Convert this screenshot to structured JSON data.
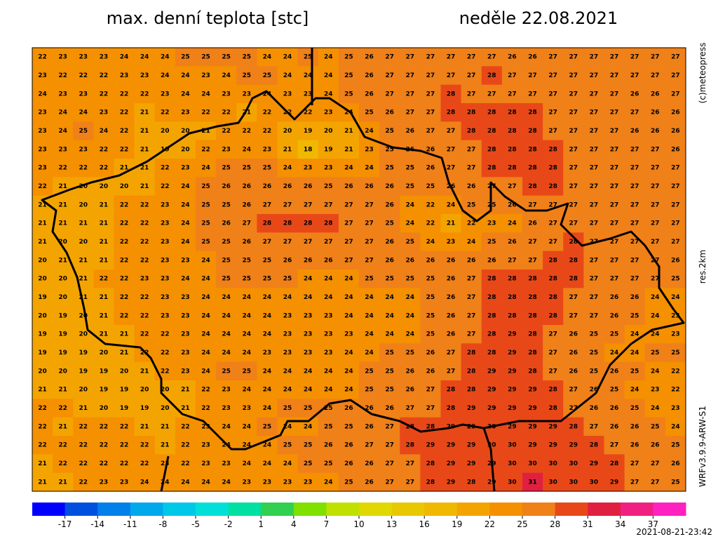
{
  "map": {
    "title": "max. denní teplota [stc]",
    "date": "neděle 22.08.2021",
    "rows": [
      [
        22,
        23,
        23,
        23,
        24,
        24,
        24,
        25,
        25,
        25,
        25,
        24,
        24,
        25,
        24,
        25,
        26,
        27,
        27,
        27,
        27,
        27,
        27,
        26,
        26,
        27,
        27,
        27,
        27,
        27,
        27,
        27
      ],
      [
        23,
        22,
        22,
        22,
        23,
        23,
        24,
        24,
        23,
        24,
        25,
        25,
        24,
        24,
        24,
        25,
        26,
        27,
        27,
        27,
        27,
        27,
        28,
        27,
        27,
        27,
        27,
        27,
        27,
        27,
        27,
        27
      ],
      [
        24,
        23,
        23,
        22,
        22,
        22,
        23,
        24,
        24,
        23,
        23,
        24,
        23,
        23,
        24,
        25,
        26,
        27,
        27,
        27,
        28,
        27,
        27,
        27,
        27,
        27,
        27,
        27,
        27,
        26,
        26,
        27
      ],
      [
        23,
        24,
        24,
        23,
        22,
        21,
        22,
        23,
        22,
        22,
        21,
        22,
        22,
        22,
        23,
        24,
        25,
        26,
        27,
        27,
        28,
        28,
        28,
        28,
        28,
        27,
        27,
        27,
        27,
        27,
        26,
        26
      ],
      [
        23,
        24,
        25,
        24,
        22,
        21,
        20,
        20,
        21,
        22,
        22,
        22,
        20,
        19,
        20,
        21,
        24,
        25,
        26,
        27,
        27,
        28,
        28,
        28,
        28,
        27,
        27,
        27,
        27,
        26,
        26,
        26
      ],
      [
        23,
        23,
        23,
        22,
        22,
        21,
        19,
        20,
        22,
        23,
        24,
        23,
        21,
        18,
        19,
        21,
        23,
        25,
        26,
        26,
        27,
        27,
        28,
        28,
        28,
        28,
        27,
        27,
        27,
        27,
        27,
        26
      ],
      [
        23,
        22,
        22,
        22,
        21,
        21,
        22,
        23,
        24,
        25,
        25,
        25,
        24,
        23,
        23,
        24,
        24,
        25,
        25,
        26,
        27,
        27,
        28,
        28,
        28,
        28,
        27,
        27,
        27,
        27,
        27,
        27
      ],
      [
        22,
        21,
        20,
        20,
        20,
        21,
        22,
        24,
        25,
        26,
        26,
        26,
        26,
        26,
        25,
        26,
        26,
        26,
        25,
        25,
        26,
        26,
        27,
        27,
        28,
        28,
        27,
        27,
        27,
        27,
        27,
        27
      ],
      [
        21,
        21,
        20,
        21,
        22,
        22,
        23,
        24,
        25,
        25,
        26,
        27,
        27,
        27,
        27,
        27,
        27,
        26,
        24,
        22,
        24,
        25,
        25,
        26,
        27,
        27,
        27,
        27,
        27,
        27,
        27,
        27
      ],
      [
        21,
        21,
        21,
        21,
        22,
        22,
        23,
        24,
        25,
        26,
        27,
        28,
        28,
        28,
        28,
        27,
        27,
        25,
        24,
        22,
        21,
        22,
        23,
        24,
        26,
        27,
        27,
        27,
        27,
        27,
        27,
        27
      ],
      [
        21,
        20,
        20,
        21,
        22,
        22,
        23,
        24,
        25,
        25,
        26,
        27,
        27,
        27,
        27,
        27,
        27,
        26,
        25,
        24,
        23,
        24,
        25,
        26,
        27,
        27,
        28,
        27,
        27,
        27,
        27,
        27
      ],
      [
        20,
        21,
        21,
        21,
        22,
        22,
        23,
        23,
        24,
        25,
        25,
        25,
        26,
        26,
        26,
        27,
        27,
        26,
        26,
        26,
        26,
        26,
        26,
        27,
        27,
        28,
        28,
        27,
        27,
        27,
        27,
        26
      ],
      [
        20,
        20,
        21,
        22,
        22,
        23,
        23,
        24,
        24,
        25,
        25,
        25,
        25,
        24,
        24,
        24,
        25,
        25,
        25,
        25,
        26,
        27,
        28,
        28,
        28,
        28,
        28,
        27,
        27,
        27,
        27,
        25
      ],
      [
        19,
        20,
        21,
        21,
        22,
        22,
        23,
        23,
        24,
        24,
        24,
        24,
        24,
        24,
        24,
        24,
        24,
        24,
        24,
        25,
        26,
        27,
        28,
        28,
        28,
        28,
        27,
        27,
        26,
        26,
        24,
        24
      ],
      [
        20,
        19,
        20,
        21,
        22,
        22,
        23,
        23,
        24,
        24,
        24,
        24,
        23,
        23,
        23,
        24,
        24,
        24,
        24,
        25,
        26,
        27,
        28,
        28,
        28,
        28,
        27,
        27,
        26,
        25,
        24,
        23
      ],
      [
        19,
        19,
        20,
        21,
        21,
        22,
        22,
        23,
        24,
        24,
        24,
        24,
        23,
        23,
        23,
        23,
        24,
        24,
        24,
        25,
        26,
        27,
        28,
        29,
        28,
        27,
        26,
        25,
        25,
        24,
        24,
        23
      ],
      [
        19,
        19,
        19,
        20,
        21,
        22,
        22,
        23,
        24,
        24,
        24,
        23,
        23,
        23,
        23,
        24,
        24,
        25,
        25,
        26,
        27,
        28,
        28,
        29,
        28,
        27,
        26,
        25,
        24,
        24,
        25,
        25
      ],
      [
        20,
        20,
        19,
        19,
        20,
        21,
        22,
        23,
        24,
        25,
        25,
        24,
        24,
        24,
        24,
        24,
        25,
        25,
        26,
        26,
        27,
        28,
        29,
        29,
        28,
        27,
        26,
        25,
        26,
        25,
        24,
        22
      ],
      [
        21,
        21,
        20,
        19,
        19,
        20,
        20,
        21,
        22,
        23,
        24,
        24,
        24,
        24,
        24,
        24,
        25,
        25,
        26,
        27,
        28,
        28,
        29,
        29,
        29,
        28,
        27,
        26,
        25,
        24,
        23,
        22
      ],
      [
        22,
        22,
        21,
        20,
        19,
        19,
        20,
        21,
        22,
        23,
        23,
        24,
        25,
        25,
        25,
        26,
        26,
        26,
        27,
        27,
        28,
        29,
        29,
        29,
        29,
        28,
        27,
        26,
        26,
        25,
        24,
        23
      ],
      [
        22,
        21,
        22,
        22,
        22,
        21,
        21,
        22,
        23,
        24,
        24,
        25,
        24,
        24,
        25,
        25,
        26,
        27,
        28,
        28,
        29,
        29,
        30,
        29,
        29,
        29,
        28,
        27,
        26,
        26,
        25,
        24
      ],
      [
        22,
        22,
        22,
        22,
        22,
        22,
        21,
        22,
        23,
        24,
        24,
        24,
        25,
        25,
        26,
        26,
        27,
        27,
        28,
        29,
        29,
        29,
        30,
        30,
        29,
        29,
        29,
        28,
        27,
        26,
        26,
        25
      ],
      [
        21,
        22,
        22,
        22,
        22,
        22,
        23,
        22,
        23,
        23,
        24,
        24,
        24,
        25,
        25,
        26,
        26,
        27,
        27,
        28,
        29,
        29,
        29,
        30,
        30,
        30,
        30,
        29,
        28,
        27,
        27,
        26
      ],
      [
        21,
        21,
        22,
        23,
        23,
        24,
        24,
        24,
        24,
        24,
        23,
        23,
        23,
        23,
        24,
        25,
        26,
        27,
        27,
        28,
        29,
        28,
        29,
        30,
        31,
        30,
        30,
        30,
        29,
        27,
        27,
        25
      ]
    ],
    "colorbar": {
      "lim": [
        -20,
        40
      ],
      "ticks": [
        -17,
        -14,
        -11,
        -8,
        -5,
        -2,
        1,
        4,
        7,
        10,
        13,
        16,
        19,
        22,
        25,
        28,
        31,
        34,
        37
      ],
      "colors": [
        "#0000ff",
        "#0050e0",
        "#0080e8",
        "#00a8ec",
        "#00c8e8",
        "#00e0d8",
        "#00e0a0",
        "#30d050",
        "#80e000",
        "#c0e000",
        "#e0d800",
        "#e8c800",
        "#f0b800",
        "#f4a400",
        "#f59000",
        "#f08018",
        "#e84818",
        "#e02040",
        "#f02080",
        "#ff20c0"
      ]
    },
    "copyright": "(c)meteopress",
    "resolution": "res.2km",
    "model": "WRFv3.9.9-ARW-S1",
    "timestamp": "2021-08-21-23:42"
  }
}
